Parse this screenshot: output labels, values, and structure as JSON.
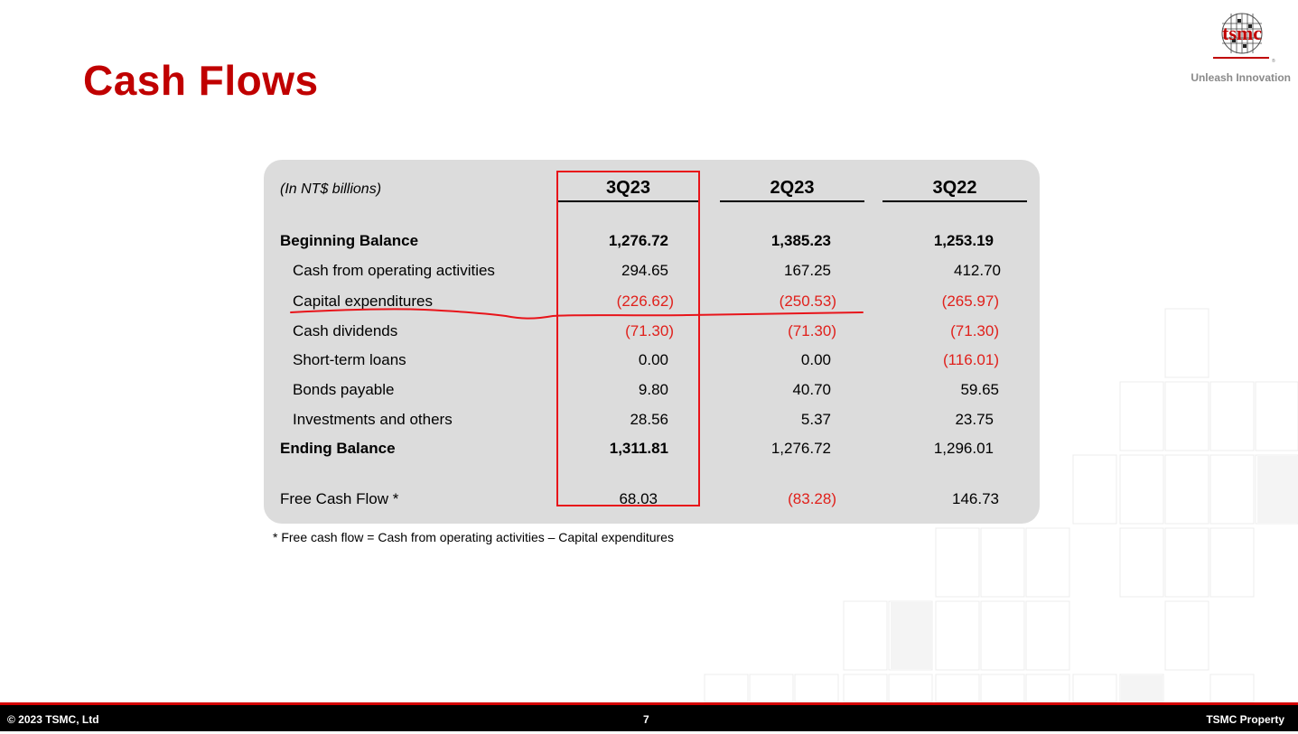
{
  "slide": {
    "title": "Cash Flows",
    "tagline": "Unleash Innovation",
    "logo_text": "tsmc"
  },
  "table": {
    "units_label": "(In NT$ billions)",
    "columns": [
      "3Q23",
      "2Q23",
      "3Q22"
    ],
    "highlighted_column": "3Q23",
    "rows": [
      {
        "label": "Beginning Balance",
        "values": [
          "1,276.72",
          "1,385.23",
          "1,253.19"
        ]
      },
      {
        "label": "Cash from operating activities",
        "values": [
          "294.65",
          "167.25",
          "412.70"
        ]
      },
      {
        "label": "Capital expenditures",
        "values": [
          "(226.62)",
          "(250.53)",
          "(265.97)"
        ]
      },
      {
        "label": "Cash dividends",
        "values": [
          "(71.30)",
          "(71.30)",
          "(71.30)"
        ]
      },
      {
        "label": "Short-term loans",
        "values": [
          "0.00",
          "0.00",
          "(116.01)"
        ]
      },
      {
        "label": "Bonds payable",
        "values": [
          "9.80",
          "40.70",
          "59.65"
        ]
      },
      {
        "label": "Investments and others",
        "values": [
          "28.56",
          "5.37",
          "23.75"
        ]
      },
      {
        "label": "Ending Balance",
        "values": [
          "1,311.81",
          "1,276.72",
          "1,296.01"
        ]
      },
      {
        "label": "Free Cash Flow *",
        "values": [
          "68.03",
          "(83.28)",
          "146.73"
        ]
      }
    ],
    "footnote": "* Free cash flow  = Cash from operating activities  – Capital expenditures"
  },
  "footer": {
    "copyright": "© 2023 TSMC, Ltd",
    "page_number": "7",
    "property": "TSMC Property"
  },
  "colors": {
    "title": "#c00000",
    "negative": "#e0201b",
    "panel": "#dcdcdc",
    "highlight": "#e8141a"
  }
}
